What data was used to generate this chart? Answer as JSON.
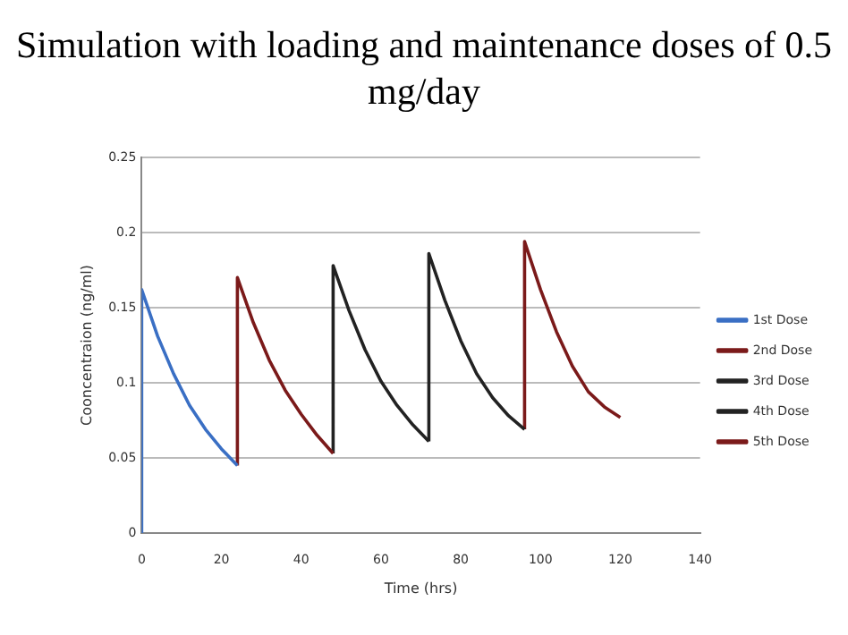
{
  "chart_data": {
    "type": "line",
    "title": "Simulation with loading and maintenance doses of 0.5 mg/day",
    "xlabel": "Time (hrs)",
    "ylabel": "Cooncentraion (ng/ml)",
    "xlim": [
      0,
      140
    ],
    "xticks": [
      0,
      20,
      40,
      60,
      80,
      100,
      120,
      140
    ],
    "ylim": [
      0,
      0.25
    ],
    "yticks": [
      0,
      0.05,
      0.1,
      0.15,
      0.2,
      0.25
    ],
    "grid": "y",
    "legend": "right",
    "marker": "none",
    "series": [
      {
        "name": "1st Dose",
        "color": "#3a6fc4",
        "x": [
          0,
          0,
          4,
          8,
          12,
          16,
          20,
          24
        ],
        "values": [
          0,
          0.162,
          0.131,
          0.106,
          0.085,
          0.069,
          0.056,
          0.045
        ]
      },
      {
        "name": "2nd Dose",
        "color": "#7b1a1a",
        "x": [
          24,
          24,
          28,
          32,
          36,
          40,
          44,
          48
        ],
        "values": [
          0.045,
          0.17,
          0.14,
          0.115,
          0.095,
          0.079,
          0.065,
          0.053
        ]
      },
      {
        "name": "3rd Dose",
        "color": "#222222",
        "x": [
          48,
          48,
          52,
          56,
          60,
          64,
          68,
          72
        ],
        "values": [
          0.053,
          0.178,
          0.148,
          0.122,
          0.101,
          0.085,
          0.072,
          0.061
        ]
      },
      {
        "name": "4th Dose",
        "color": "#222222",
        "x": [
          72,
          72,
          76,
          80,
          84,
          88,
          92,
          96
        ],
        "values": [
          0.061,
          0.186,
          0.155,
          0.128,
          0.106,
          0.09,
          0.078,
          0.069
        ]
      },
      {
        "name": "5th Dose",
        "color": "#7b1a1a",
        "x": [
          96,
          96,
          100,
          104,
          108,
          112,
          116,
          120
        ],
        "values": [
          0.069,
          0.194,
          0.162,
          0.134,
          0.111,
          0.094,
          0.084,
          0.077
        ]
      }
    ]
  }
}
